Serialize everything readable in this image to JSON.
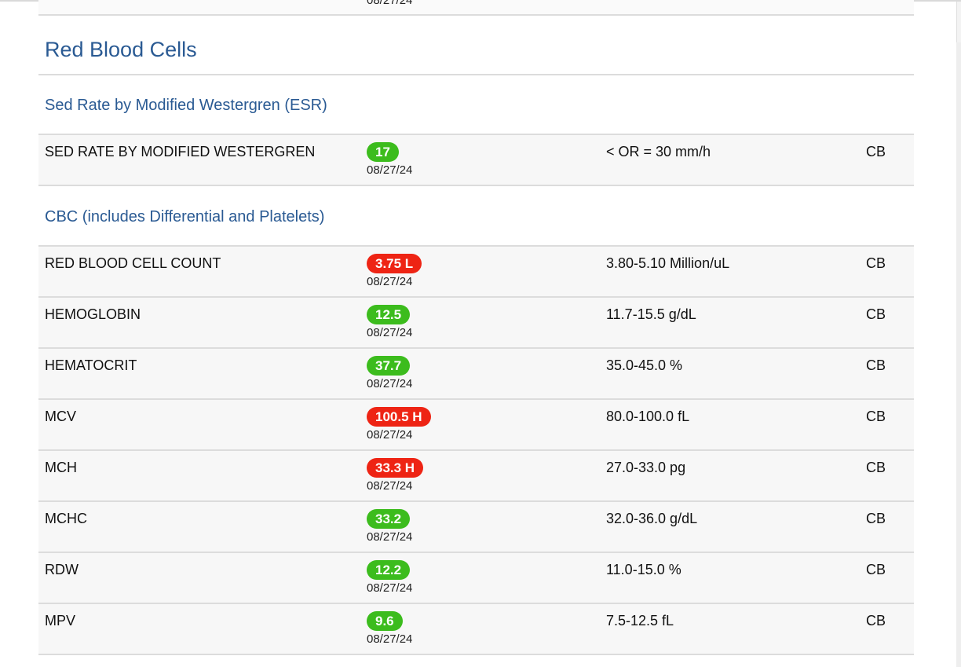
{
  "cutoff_date": "08/27/24",
  "section": {
    "title": "Red Blood Cells"
  },
  "esr": {
    "title": "Sed Rate by Modified Westergren (ESR)",
    "rows": [
      {
        "name": "SED RATE BY MODIFIED WESTERGREN",
        "value": "17",
        "flag": "normal",
        "date": "08/27/24",
        "range": "< OR = 30 mm/h",
        "lab": "CB"
      }
    ]
  },
  "cbc": {
    "title": "CBC (includes Differential and Platelets)",
    "rows": [
      {
        "name": "RED BLOOD CELL COUNT",
        "value": "3.75 L",
        "flag": "abnormal",
        "date": "08/27/24",
        "range": "3.80-5.10 Million/uL",
        "lab": "CB"
      },
      {
        "name": "HEMOGLOBIN",
        "value": "12.5",
        "flag": "normal",
        "date": "08/27/24",
        "range": "11.7-15.5 g/dL",
        "lab": "CB"
      },
      {
        "name": "HEMATOCRIT",
        "value": "37.7",
        "flag": "normal",
        "date": "08/27/24",
        "range": "35.0-45.0 %",
        "lab": "CB"
      },
      {
        "name": "MCV",
        "value": "100.5 H",
        "flag": "abnormal",
        "date": "08/27/24",
        "range": "80.0-100.0 fL",
        "lab": "CB"
      },
      {
        "name": "MCH",
        "value": "33.3 H",
        "flag": "abnormal",
        "date": "08/27/24",
        "range": "27.0-33.0 pg",
        "lab": "CB"
      },
      {
        "name": "MCHC",
        "value": "33.2",
        "flag": "normal",
        "date": "08/27/24",
        "range": "32.0-36.0 g/dL",
        "lab": "CB"
      },
      {
        "name": "RDW",
        "value": "12.2",
        "flag": "normal",
        "date": "08/27/24",
        "range": "11.0-15.0 %",
        "lab": "CB"
      },
      {
        "name": "MPV",
        "value": "9.6",
        "flag": "normal",
        "date": "08/27/24",
        "range": "7.5-12.5 fL",
        "lab": "CB"
      }
    ]
  },
  "colors": {
    "heading": "#2a5a93",
    "normal": "#3cbc1d",
    "abnormal": "#ee2414"
  }
}
